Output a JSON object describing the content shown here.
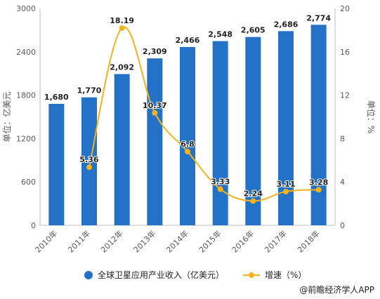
{
  "chart_data": {
    "type": "bar+line",
    "categories": [
      "2010年",
      "2011年",
      "2012年",
      "2013年",
      "2014年",
      "2015年",
      "2016年",
      "2017年",
      "2018年"
    ],
    "series": [
      {
        "name": "全球卫星应用产业收入（亿美元）",
        "type": "bar",
        "axis": "left",
        "color": "#2472C8",
        "values": [
          1680,
          1770,
          2092,
          2309,
          2466,
          2548,
          2605,
          2686,
          2774
        ],
        "labels": [
          "1,680",
          "1,770",
          "2,092",
          "2,309",
          "2,466",
          "2,548",
          "2,605",
          "2,686",
          "2,774"
        ]
      },
      {
        "name": "增速（%）",
        "type": "line",
        "axis": "right",
        "color": "#F5B21E",
        "values": [
          null,
          5.36,
          18.19,
          10.37,
          6.8,
          3.33,
          2.24,
          3.11,
          3.28
        ],
        "labels": [
          "",
          "5.36",
          "18.19",
          "10.37",
          "6.8",
          "3.33",
          "2.24",
          "3.11",
          "3.28"
        ]
      }
    ],
    "ylabel_left": "单位：亿美元",
    "ylabel_right": "单位：%",
    "ylim_left": [
      0,
      3000
    ],
    "ylim_right": [
      0,
      20
    ],
    "yticks_left": [
      "0",
      "600",
      "1200",
      "1800",
      "2400",
      "3000"
    ],
    "yticks_right": [
      "0",
      "4",
      "8",
      "12",
      "16",
      "20"
    ],
    "grid": false,
    "legend_position": "bottom"
  },
  "source": "@前瞻经济学人APP"
}
